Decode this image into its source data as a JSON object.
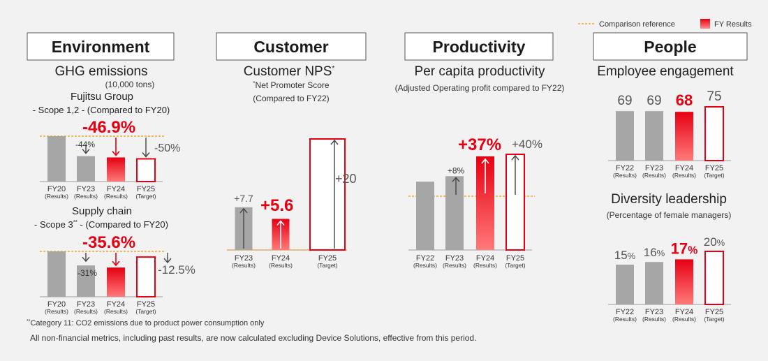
{
  "legend": {
    "reference": "Comparison reference",
    "results": "FY Results"
  },
  "colors": {
    "red": "#e60012",
    "gray": "#a6a6a6",
    "reference": "#f39800"
  },
  "sections": {
    "environment": {
      "title": "Environment",
      "subtitle": "GHG emissions",
      "unit": "(10,000 tons)"
    },
    "customer": {
      "title": "Customer",
      "subtitle": "Customer NPS",
      "subtitle_mark": "*",
      "note_mark": "*",
      "note_line1": "Net Promoter Score",
      "note_line2": "(Compared to FY22)"
    },
    "productivity": {
      "title": "Productivity",
      "subtitle": "Per capita productivity",
      "note": "(Adjusted Operating profit compared to FY22)"
    },
    "people": {
      "title": "People",
      "subtitle": "Employee engagement",
      "subtitle2": "Diversity leadership",
      "note2": "(Percentage of female managers)"
    }
  },
  "footnotes": {
    "scope3_mark": "**",
    "scope3": "Category 11: CO2 emissions due to product power consumption only",
    "general": "All non-financial metrics, including past results, are now calculated excluding Device Solutions, effective from this period."
  },
  "chart_data": [
    {
      "id": "ghg-scope12",
      "type": "bar",
      "title": "Fujitsu Group",
      "subtitle": "- Scope 1,2 - (Compared to FY20)",
      "categories": [
        "FY20",
        "FY23",
        "FY24",
        "FY25"
      ],
      "category_notes": [
        "(Results)",
        "(Results)",
        "(Results)",
        "(Target)"
      ],
      "values": [
        100,
        56,
        53.1,
        50
      ],
      "data_labels": [
        "",
        "-44%",
        "-46.9%",
        "-50%"
      ],
      "ylim": [
        0,
        100
      ]
    },
    {
      "id": "ghg-scope3",
      "type": "bar",
      "title": "Supply chain",
      "subtitle": "- Scope 3",
      "subtitle_mark": "**",
      "subtitle_tail": " -  (Compared to FY20)",
      "categories": [
        "FY20",
        "FY23",
        "FY24",
        "FY25"
      ],
      "category_notes": [
        "(Results)",
        "(Results)",
        "(Results)",
        "(Target)"
      ],
      "values": [
        100,
        69,
        64.4,
        87.5
      ],
      "data_labels": [
        "",
        "-31%",
        "-35.6%",
        "-12.5%"
      ],
      "ylim": [
        0,
        100
      ]
    },
    {
      "id": "nps",
      "type": "bar",
      "categories": [
        "FY23",
        "FY24",
        "FY25"
      ],
      "category_notes": [
        "(Results)",
        "(Results)",
        "(Target)"
      ],
      "values": [
        7.7,
        5.6,
        20
      ],
      "data_labels": [
        "+7.7",
        "+5.6",
        "+20"
      ],
      "ylim": [
        0,
        20
      ]
    },
    {
      "id": "productivity",
      "type": "bar",
      "categories": [
        "FY22",
        "FY23",
        "FY24",
        "FY25"
      ],
      "category_notes": [
        "(Results)",
        "(Results)",
        "(Results)",
        "(Target)"
      ],
      "values": [
        100,
        108,
        137,
        140
      ],
      "data_labels": [
        "",
        "+8%",
        "+37%",
        "+40%"
      ],
      "ylim": [
        0,
        140
      ]
    },
    {
      "id": "engagement",
      "type": "bar",
      "categories": [
        "FY22",
        "FY23",
        "FY24",
        "FY25"
      ],
      "category_notes": [
        "(Results)",
        "(Results)",
        "(Results)",
        "(Target)"
      ],
      "values": [
        69,
        69,
        68,
        75
      ],
      "data_labels": [
        "69",
        "69",
        "68",
        "75"
      ],
      "ylim": [
        0,
        75
      ]
    },
    {
      "id": "diversity",
      "type": "bar",
      "categories": [
        "FY22",
        "FY23",
        "FY24",
        "FY25"
      ],
      "category_notes": [
        "(Results)",
        "(Results)",
        "(Results)",
        "(Target)"
      ],
      "values": [
        15,
        16,
        17,
        20
      ],
      "data_label_numbers": [
        "15",
        "16",
        "17",
        "20"
      ],
      "data_label_unit": "%",
      "ylim": [
        0,
        20
      ]
    }
  ]
}
